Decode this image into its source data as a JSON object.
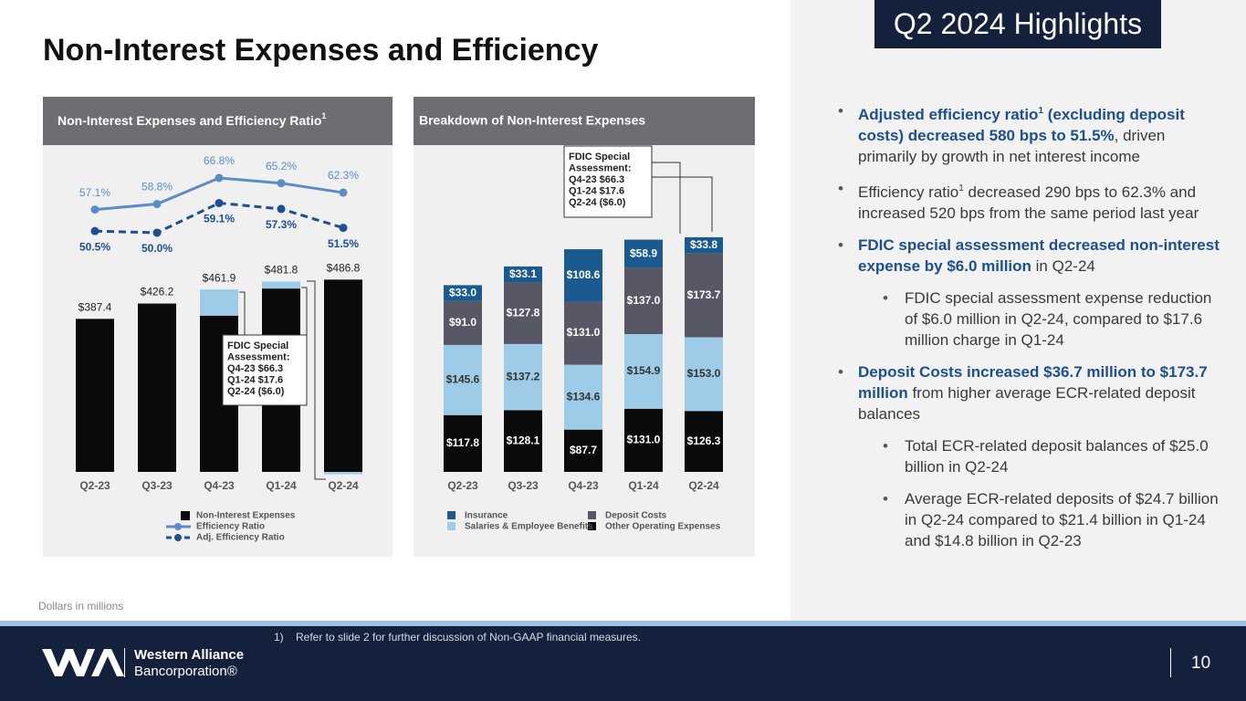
{
  "title": "Non-Interest Expenses and Efficiency",
  "highlights_title": "Q2 2024 Highlights",
  "chart_data": [
    {
      "type": "bar_line",
      "title": "Non-Interest Expenses and Efficiency Ratio",
      "title_sup": "1",
      "categories": [
        "Q2-23",
        "Q3-23",
        "Q4-23",
        "Q1-24",
        "Q2-24"
      ],
      "series": [
        {
          "name": "Non-Interest Expenses",
          "color": "#0a0a0a",
          "values": [
            387.4,
            426.2,
            461.9,
            481.8,
            486.8
          ],
          "value_labels": [
            "$387.4",
            "$426.2",
            "$461.9",
            "$481.8",
            "$486.8"
          ]
        },
        {
          "name": "Efficiency Ratio",
          "color": "#5b8cc6",
          "axis": "y2",
          "values": [
            57.1,
            58.8,
            66.8,
            65.2,
            62.3
          ],
          "value_labels": [
            "57.1%",
            "58.8%",
            "66.8%",
            "65.2%",
            "62.3%"
          ]
        },
        {
          "name": "Adj. Efficiency Ratio",
          "color": "#1d4f91",
          "axis": "y2",
          "dashed": true,
          "values": [
            50.5,
            50.0,
            59.1,
            57.3,
            51.5
          ],
          "value_labels": [
            "50.5%",
            "50.0%",
            "59.1%",
            "57.3%",
            "51.5%"
          ]
        }
      ],
      "fdic": {
        "color": "#9dcbe8",
        "values": [
          null,
          null,
          66.3,
          17.6,
          -6.0
        ]
      },
      "annotation": [
        "FDIC Special",
        "Assessment:",
        "Q4-23 $66.3",
        "Q1-24 $17.6",
        "Q2-24 ($6.0)"
      ],
      "ylim": [
        0,
        825
      ],
      "y2lim": [
        -23.4,
        76.6
      ]
    },
    {
      "type": "stacked_bar",
      "title": "Breakdown of Non-Interest Expenses",
      "categories": [
        "Q2-23",
        "Q3-23",
        "Q4-23",
        "Q1-24",
        "Q2-24"
      ],
      "series": [
        {
          "name": "Other Operating Expenses",
          "color": "#0a0a0a",
          "values": [
            117.8,
            128.1,
            87.7,
            131.0,
            126.3
          ],
          "value_labels": [
            "$117.8",
            "$128.1",
            "$87.7",
            "$131.0",
            "$126.3"
          ]
        },
        {
          "name": "Salaries & Employee Benefits",
          "color": "#9dcbe8",
          "values": [
            145.6,
            137.2,
            134.6,
            154.9,
            153.0
          ],
          "value_labels": [
            "$145.6",
            "$137.2",
            "$134.6",
            "$154.9",
            "$153.0"
          ]
        },
        {
          "name": "Deposit Costs",
          "color": "#575766",
          "values": [
            91.0,
            127.8,
            131.0,
            137.0,
            173.7
          ],
          "value_labels": [
            "$91.0",
            "$127.8",
            "$131.0",
            "$137.0",
            "$173.7"
          ]
        },
        {
          "name": "Insurance",
          "color": "#1a5a8e",
          "values": [
            33.0,
            33.1,
            108.6,
            58.9,
            33.8
          ],
          "value_labels": [
            "$33.0",
            "$33.1",
            "$108.6",
            "$58.9",
            "$33.8"
          ]
        }
      ],
      "annotation": [
        "FDIC Special",
        "Assessment:",
        "Q4-23 $66.3",
        "Q1-24 $17.6",
        "Q2-24 ($6.0)"
      ],
      "ylim": [
        0,
        676
      ]
    }
  ],
  "bullets": [
    {
      "level": 1,
      "parts": [
        {
          "text": "Adjusted efficiency ratio",
          "bold": true
        },
        {
          "text": "1",
          "bold": true,
          "sup": true
        },
        {
          "text": " (excluding deposit costs) decreased 580 bps to 51.5%",
          "bold": true
        },
        {
          "text": ", driven primarily by growth in net interest income"
        }
      ]
    },
    {
      "level": 1,
      "parts": [
        {
          "text": "Efficiency ratio"
        },
        {
          "text": "1",
          "sup": true
        },
        {
          "text": " decreased 290 bps to 62.3% and increased 520 bps from the same period last year"
        }
      ]
    },
    {
      "level": 1,
      "parts": [
        {
          "text": "FDIC special assessment decreased non-interest expense by $6.0 million",
          "bold": true
        },
        {
          "text": " in Q2-24"
        }
      ]
    },
    {
      "level": 2,
      "parts": [
        {
          "text": "FDIC special assessment expense reduction of $6.0 million in Q2-24, compared to $17.6 million charge in Q1-24"
        }
      ]
    },
    {
      "level": 1,
      "parts": [
        {
          "text": "Deposit Costs increased $36.7 million to $173.7 million",
          "bold": true
        },
        {
          "text": " from higher average ECR-related deposit balances"
        }
      ]
    },
    {
      "level": 2,
      "parts": [
        {
          "text": "Total ECR-related deposit balances of $25.0 billion in Q2-24"
        }
      ]
    },
    {
      "level": 2,
      "parts": [
        {
          "text": "Average ECR-related deposits of $24.7 billion in Q2-24 compared to $21.4 billion in Q1-24 and $14.8 billion in Q2-23"
        }
      ]
    }
  ],
  "note": "Dollars in millions",
  "footnote": "1)    Refer to slide 2 for further discussion of Non-GAAP financial measures.",
  "logo": {
    "name": "Western Alliance",
    "sub": "Bancorporation®"
  },
  "page_number": "10"
}
